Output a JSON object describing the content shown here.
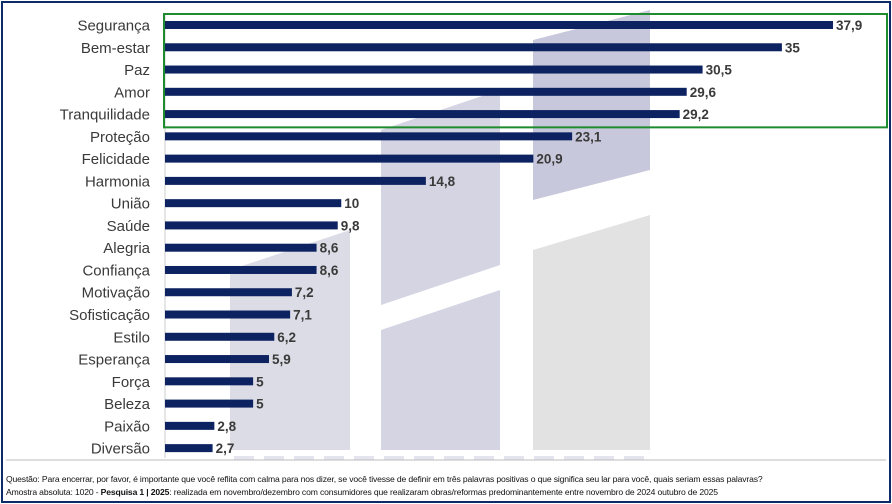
{
  "chart_data": {
    "type": "bar",
    "orientation": "horizontal",
    "categories": [
      "Segurança",
      "Bem-estar",
      "Paz",
      "Amor",
      "Tranquilidade",
      "Proteção",
      "Felicidade",
      "Harmonia",
      "União",
      "Saúde",
      "Alegria",
      "Confiança",
      "Motivação",
      "Sofisticação",
      "Estilo",
      "Esperança",
      "Força",
      "Beleza",
      "Paixão",
      "Diversão"
    ],
    "values": [
      37.9,
      35,
      30.5,
      29.6,
      29.2,
      23.1,
      20.9,
      14.8,
      10,
      9.8,
      8.6,
      8.6,
      7.2,
      7.1,
      6.2,
      5.9,
      5,
      5,
      2.8,
      2.7
    ],
    "value_labels": [
      "37,9",
      "35",
      "30,5",
      "29,6",
      "29,2",
      "23,1",
      "20,9",
      "14,8",
      "10",
      "9,8",
      "8,6",
      "8,6",
      "7,2",
      "7,1",
      "6,2",
      "5,9",
      "5",
      "5",
      "2,8",
      "2,7"
    ],
    "highlighted_top": 5,
    "xlim": [
      0,
      40
    ],
    "bar_color": "#0d2260",
    "highlight_color": "#1e8c2e"
  },
  "watermark": "FUNDAÇÃO DE DADOS",
  "footer": {
    "question": "Questão: Para encerrar, por favor, é importante que você reflita com calma para nos dizer, se você tivesse de definir em três palavras positivas o que significa seu lar para você, quais seriam essas palavras?",
    "sample_prefix": "Amostra absoluta: 1020 - ",
    "sample_bold": "Pesquisa 1 | 2025",
    "sample_suffix": ": realizada em novembro/dezembro com consumidores que realizaram obras/reformas predominantemente entre novembro de 2024 outubro de 2025"
  }
}
